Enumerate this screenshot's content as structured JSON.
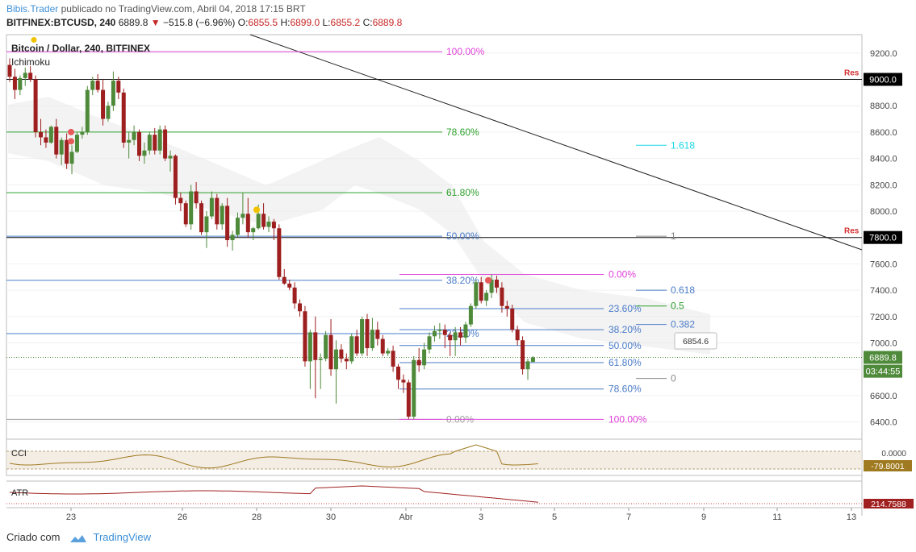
{
  "header": {
    "author": "Bibis.Trader",
    "published_text": "publicado no TradingView.com, Abril 04, 2018 17:15 BRT",
    "symbol": "BITFINEX:BTCUSD, 240",
    "last": "6889.8",
    "change": "−515.8 (−6.96%)",
    "o_label": "O:",
    "o_value": "6855.5",
    "h_label": "H:",
    "h_value": "6899.0",
    "l_label": "L:",
    "l_value": "6855.2",
    "c_label": "C:",
    "c_value": "6889.8"
  },
  "pane_title": "Bitcoin / Dollar, 240, BITFINEX",
  "indicator_label": "Ichimoku",
  "footer": {
    "created_with": "Criado com",
    "brand": "TradingView"
  },
  "chart_data": {
    "type": "candlestick",
    "colors": {
      "up": "#4e8a3a",
      "down": "#9e1f1f",
      "grid": "#e6e6e6",
      "fib_green": "#2ca02c",
      "fib_blue": "#4a7bc8",
      "fib_magenta": "#e040d8",
      "cyan": "#19d7e6"
    },
    "y_ticks": [
      "6400.0",
      "6600.0",
      "6800.0",
      "7000.0",
      "7200.0",
      "7400.0",
      "7600.0",
      "7800.0",
      "8000.0",
      "8200.0",
      "8400.0",
      "8600.0",
      "8800.0",
      "9000.0",
      "9200.0"
    ],
    "ylim": [
      6300,
      9320
    ],
    "x_tick_labels": [
      "23",
      "26",
      "28",
      "30",
      "Abr",
      "3",
      "5",
      "7",
      "9",
      "11",
      "13"
    ],
    "price_badges": [
      {
        "label": "9000.0",
        "price": 9000,
        "bg": "#000000"
      },
      {
        "label": "7800.0",
        "price": 7800,
        "bg": "#000000"
      },
      {
        "label": "6889.8",
        "price": 6889.8,
        "bg": "#4e8a3a"
      },
      {
        "label": "03:44:55",
        "price": 6785,
        "bg": "#4e8a3a"
      }
    ],
    "res_labels": [
      "Res",
      "Res"
    ],
    "fib_left": [
      {
        "label": "100.00%",
        "price": 9210,
        "color": "#e040d8"
      },
      {
        "label": "78.60%",
        "price": 8600,
        "color": "#2ca02c"
      },
      {
        "label": "61.80%",
        "price": 8140,
        "color": "#2ca02c"
      },
      {
        "label": "50.00%",
        "price": 7810,
        "color": "#4a7bc8"
      },
      {
        "label": "38.20%",
        "price": 7475,
        "color": "#4a7bc8"
      },
      {
        "label": "23.60%",
        "price": 7070,
        "color": "#4a7bc8"
      },
      {
        "label": "0.00%",
        "price": 6420,
        "color": "#9e9e9e"
      }
    ],
    "fib_right": [
      {
        "label": "0.00%",
        "price": 7520,
        "color": "#e040d8"
      },
      {
        "label": "23.60%",
        "price": 7260,
        "color": "#4a7bc8"
      },
      {
        "label": "38.20%",
        "price": 7100,
        "color": "#4a7bc8"
      },
      {
        "label": "50.00%",
        "price": 6980,
        "color": "#4a7bc8"
      },
      {
        "label": "61.80%",
        "price": 6850,
        "color": "#4a7bc8"
      },
      {
        "label": "78.60%",
        "price": 6650,
        "color": "#4a7bc8"
      },
      {
        "label": "100.00%",
        "price": 6420,
        "color": "#e040d8"
      }
    ],
    "fib_ext": [
      {
        "label": "1.618",
        "price": 8500,
        "color": "#19d7e6"
      },
      {
        "label": "1",
        "price": 7810,
        "color": "#888888"
      },
      {
        "label": "0.618",
        "price": 7400,
        "color": "#4a7bc8"
      },
      {
        "label": "0.5",
        "price": 7280,
        "color": "#2ca02c"
      },
      {
        "label": "0.382",
        "price": 7140,
        "color": "#4a7bc8"
      },
      {
        "label": "0",
        "price": 6730,
        "color": "#888888"
      }
    ],
    "price_callout": "6854.6",
    "candles": [
      [
        9110,
        9160,
        8980,
        9020
      ],
      [
        9020,
        9080,
        8850,
        8920
      ],
      [
        8920,
        9030,
        8880,
        9010
      ],
      [
        9010,
        9090,
        8950,
        9050
      ],
      [
        9050,
        9100,
        8980,
        9000
      ],
      [
        9000,
        9030,
        8560,
        8600
      ],
      [
        8600,
        8700,
        8500,
        8560
      ],
      [
        8560,
        8620,
        8480,
        8520
      ],
      [
        8520,
        8650,
        8510,
        8640
      ],
      [
        8640,
        8700,
        8400,
        8430
      ],
      [
        8430,
        8560,
        8350,
        8540
      ],
      [
        8540,
        8590,
        8320,
        8360
      ],
      [
        8360,
        8500,
        8280,
        8450
      ],
      [
        8450,
        8600,
        8440,
        8580
      ],
      [
        8580,
        8640,
        8550,
        8600
      ],
      [
        8600,
        8950,
        8580,
        8920
      ],
      [
        8920,
        9020,
        8880,
        8990
      ],
      [
        8990,
        9040,
        8900,
        8920
      ],
      [
        8920,
        9000,
        8650,
        8700
      ],
      [
        8700,
        8830,
        8680,
        8800
      ],
      [
        8800,
        9060,
        8760,
        8990
      ],
      [
        8990,
        9020,
        8850,
        8900
      ],
      [
        8900,
        8930,
        8480,
        8520
      ],
      [
        8520,
        8600,
        8400,
        8540
      ],
      [
        8540,
        8650,
        8500,
        8600
      ],
      [
        8600,
        8620,
        8380,
        8420
      ],
      [
        8420,
        8520,
        8360,
        8460
      ],
      [
        8460,
        8600,
        8430,
        8580
      ],
      [
        8580,
        8630,
        8430,
        8460
      ],
      [
        8460,
        8650,
        8430,
        8620
      ],
      [
        8620,
        8650,
        8380,
        8400
      ],
      [
        8400,
        8460,
        8300,
        8420
      ],
      [
        8420,
        8430,
        8050,
        8100
      ],
      [
        8100,
        8140,
        8000,
        8060
      ],
      [
        8060,
        8080,
        7880,
        7900
      ],
      [
        7900,
        8200,
        7860,
        8150
      ],
      [
        8150,
        8220,
        8020,
        8060
      ],
      [
        8060,
        8080,
        7820,
        7840
      ],
      [
        7840,
        8000,
        7720,
        7960
      ],
      [
        7960,
        8150,
        7940,
        8100
      ],
      [
        8100,
        8130,
        7860,
        7900
      ],
      [
        7900,
        8060,
        7860,
        8040
      ],
      [
        8040,
        8100,
        7730,
        7780
      ],
      [
        7780,
        7850,
        7700,
        7820
      ],
      [
        7820,
        7990,
        7800,
        7950
      ],
      [
        7950,
        8140,
        7900,
        7980
      ],
      [
        7980,
        8100,
        7800,
        7840
      ],
      [
        7840,
        7880,
        7780,
        7870
      ],
      [
        7870,
        8050,
        7860,
        7980
      ],
      [
        7980,
        8060,
        7860,
        7880
      ],
      [
        7880,
        7960,
        7840,
        7920
      ],
      [
        7920,
        7940,
        7780,
        7870
      ],
      [
        7870,
        7900,
        7480,
        7500
      ],
      [
        7500,
        7560,
        7440,
        7450
      ],
      [
        7450,
        7480,
        7400,
        7420
      ],
      [
        7420,
        7460,
        7260,
        7300
      ],
      [
        7300,
        7330,
        7200,
        7240
      ],
      [
        7240,
        7280,
        6820,
        6860
      ],
      [
        6860,
        7100,
        6650,
        7080
      ],
      [
        7080,
        7200,
        6580,
        6870
      ],
      [
        6870,
        6920,
        6650,
        6880
      ],
      [
        6880,
        7090,
        6860,
        7060
      ],
      [
        7060,
        7180,
        6750,
        6800
      ],
      [
        6800,
        7020,
        6540,
        6950
      ],
      [
        6950,
        6990,
        6850,
        6880
      ],
      [
        6880,
        6920,
        6800,
        6860
      ],
      [
        6860,
        7070,
        6840,
        7050
      ],
      [
        7050,
        7100,
        6900,
        6920
      ],
      [
        6920,
        7200,
        6900,
        7180
      ],
      [
        7180,
        7220,
        6900,
        6960
      ],
      [
        6960,
        7190,
        6940,
        7100
      ],
      [
        7100,
        7160,
        6980,
        7030
      ],
      [
        7030,
        7060,
        6900,
        6920
      ],
      [
        6920,
        6960,
        6900,
        6940
      ],
      [
        6940,
        6980,
        6780,
        6820
      ],
      [
        6820,
        6840,
        6650,
        6720
      ],
      [
        6720,
        6760,
        6620,
        6700
      ],
      [
        6700,
        6720,
        6420,
        6440
      ],
      [
        6440,
        6900,
        6420,
        6870
      ],
      [
        6870,
        6960,
        6780,
        6830
      ],
      [
        6830,
        7000,
        6800,
        6950
      ],
      [
        6950,
        7080,
        6920,
        7050
      ],
      [
        7050,
        7130,
        7010,
        7090
      ],
      [
        7090,
        7150,
        7030,
        7100
      ],
      [
        7100,
        7140,
        6960,
        7060
      ],
      [
        7060,
        7080,
        6900,
        7020
      ],
      [
        7020,
        7120,
        6900,
        7080
      ],
      [
        7080,
        7120,
        6980,
        7040
      ],
      [
        7040,
        7160,
        7000,
        7140
      ],
      [
        7140,
        7300,
        7120,
        7280
      ],
      [
        7280,
        7480,
        7260,
        7460
      ],
      [
        7460,
        7500,
        7300,
        7320
      ],
      [
        7320,
        7400,
        7280,
        7380
      ],
      [
        7380,
        7520,
        7340,
        7480
      ],
      [
        7480,
        7510,
        7380,
        7420
      ],
      [
        7420,
        7460,
        7230,
        7280
      ],
      [
        7280,
        7320,
        7200,
        7260
      ],
      [
        7260,
        7290,
        7080,
        7100
      ],
      [
        7100,
        7130,
        6980,
        7020
      ],
      [
        7020,
        7050,
        6760,
        6800
      ],
      [
        6800,
        6880,
        6720,
        6860
      ],
      [
        6855.5,
        6899,
        6855.2,
        6889.8
      ]
    ],
    "indicators": {
      "cci": {
        "label": "CCI",
        "value": "-79.8001",
        "color": "#a07a20"
      },
      "atr": {
        "label": "ATR",
        "value": "214.7588",
        "color": "#a02020"
      }
    }
  }
}
